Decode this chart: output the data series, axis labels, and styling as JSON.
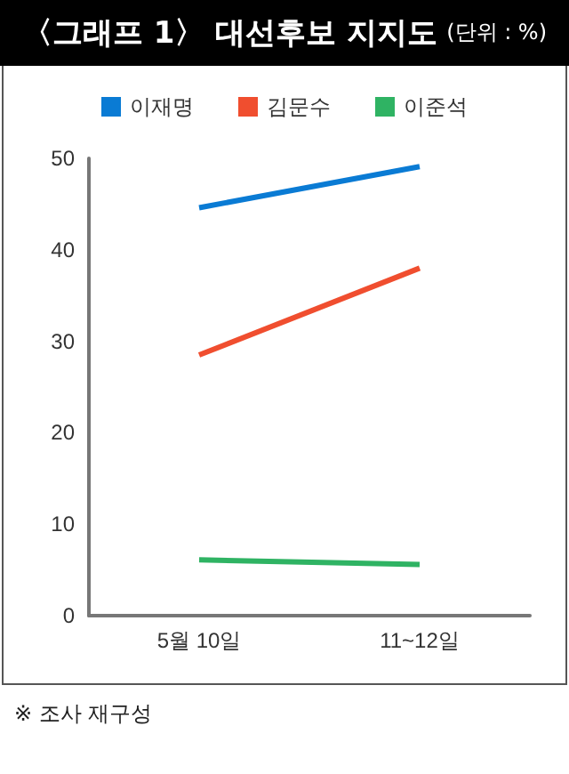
{
  "chart_data": {
    "type": "line",
    "title": "〈그래프 1〉 대선후보 지지도",
    "subtitle": "(단위 : %)",
    "categories": [
      "5월 10일",
      "11~12일"
    ],
    "series": [
      {
        "name": "이재명",
        "color": "#0a7bd4",
        "values": [
          44.6,
          49.1
        ]
      },
      {
        "name": "김문수",
        "color": "#f04e2f",
        "values": [
          28.5,
          38.0
        ]
      },
      {
        "name": "이준석",
        "color": "#2fb363",
        "values": [
          6.1,
          5.6
        ]
      }
    ],
    "ylim": [
      0,
      50
    ],
    "yticks": [
      0,
      10,
      20,
      30,
      40,
      50
    ],
    "grid": false,
    "legend": "top",
    "marker": "none",
    "annotations": [
      "※ 조사 재구성"
    ]
  }
}
